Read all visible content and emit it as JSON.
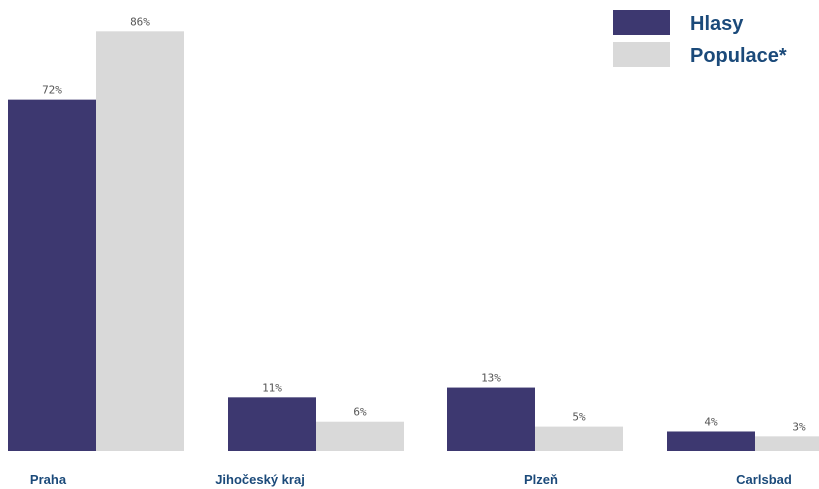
{
  "chart_data": {
    "type": "bar",
    "categories": [
      "Praha",
      "Jihočeský kraj",
      "Plzeň",
      "Carlsbad"
    ],
    "series": [
      {
        "name": "Hlasy",
        "values": [
          72,
          11,
          13,
          4
        ],
        "labels": [
          "72%",
          "11%",
          "13%",
          "4%"
        ]
      },
      {
        "name": "Populace*",
        "values": [
          86,
          6,
          5,
          3
        ],
        "labels": [
          "86%",
          "6%",
          "5%",
          "3%"
        ]
      }
    ],
    "ylim": [
      0,
      100
    ],
    "legend_position": "top-right",
    "grid": false
  },
  "colors": {
    "series": [
      "#3d3870",
      "#d9d9d9"
    ],
    "text": "#1b4a7a",
    "value_label": "#555555"
  }
}
